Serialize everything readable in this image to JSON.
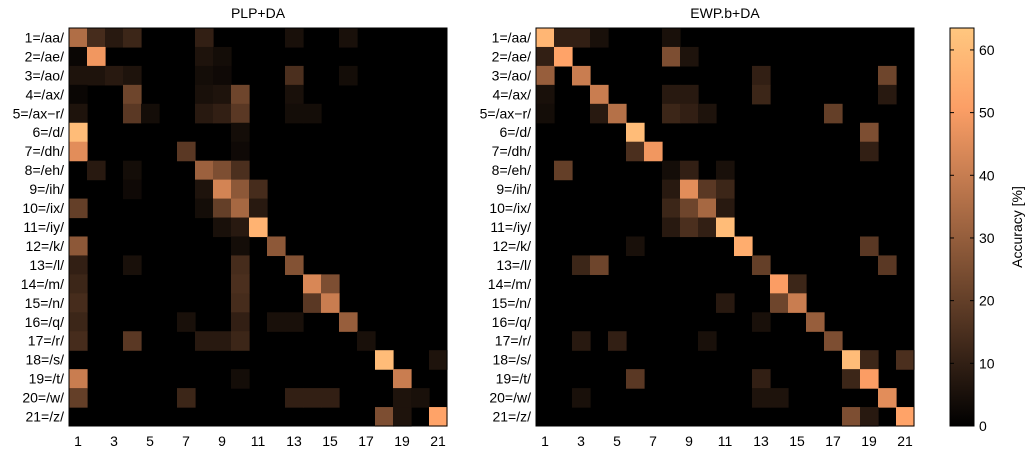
{
  "figure": {
    "colorbar": {
      "label": "Accuracy [%]",
      "ticks": [
        "0",
        "10",
        "20",
        "30",
        "40",
        "50",
        "60"
      ],
      "min": 0,
      "max": 63.5
    }
  },
  "chart_data": [
    {
      "type": "heatmap",
      "title": "PLP+DA",
      "xlabel": "",
      "ylabel": "",
      "row_labels": [
        "1=/aa/",
        "2=/ae/",
        "3=/ao/",
        "4=/ax/",
        "5=/ax−r/",
        "6=/d/",
        "7=/dh/",
        "8=/eh/",
        "9=/ih/",
        "10=/ix/",
        "11=/iy/",
        "12=/k/",
        "13=/l/",
        "14=/m/",
        "15=/n/",
        "16=/q/",
        "17=/r/",
        "18=/s/",
        "19=/t/",
        "20=/w/",
        "21=/z/"
      ],
      "col_tick_labels": [
        "1",
        "3",
        "5",
        "7",
        "9",
        "11",
        "13",
        "15",
        "17",
        "19",
        "21"
      ],
      "colormap": "copper",
      "clim": [
        0,
        63.5
      ],
      "diagonal": [
        35,
        48,
        8,
        22,
        4,
        0,
        2,
        31,
        42,
        33,
        57,
        28,
        26,
        43,
        40,
        30,
        5,
        60,
        40,
        5,
        52
      ],
      "off_diagonal": [
        [
          1,
          2,
          14
        ],
        [
          1,
          3,
          8
        ],
        [
          1,
          4,
          12
        ],
        [
          1,
          8,
          10
        ],
        [
          1,
          13,
          5
        ],
        [
          1,
          16,
          5
        ],
        [
          2,
          1,
          2
        ],
        [
          2,
          8,
          6
        ],
        [
          2,
          9,
          4
        ],
        [
          3,
          1,
          6
        ],
        [
          3,
          2,
          6
        ],
        [
          3,
          4,
          6
        ],
        [
          3,
          8,
          4
        ],
        [
          3,
          9,
          3
        ],
        [
          3,
          13,
          15
        ],
        [
          3,
          16,
          4
        ],
        [
          4,
          1,
          2
        ],
        [
          4,
          8,
          5
        ],
        [
          4,
          9,
          6
        ],
        [
          4,
          10,
          22
        ],
        [
          4,
          13,
          5
        ],
        [
          5,
          1,
          6
        ],
        [
          5,
          4,
          18
        ],
        [
          5,
          8,
          8
        ],
        [
          5,
          9,
          10
        ],
        [
          5,
          10,
          18
        ],
        [
          5,
          13,
          4
        ],
        [
          5,
          14,
          4
        ],
        [
          6,
          1,
          60
        ],
        [
          6,
          10,
          4
        ],
        [
          7,
          1,
          45
        ],
        [
          7,
          7,
          18
        ],
        [
          7,
          10,
          3
        ],
        [
          8,
          2,
          8
        ],
        [
          8,
          4,
          4
        ],
        [
          8,
          9,
          25
        ],
        [
          8,
          10,
          15
        ],
        [
          9,
          4,
          3
        ],
        [
          9,
          8,
          6
        ],
        [
          9,
          10,
          28
        ],
        [
          9,
          11,
          14
        ],
        [
          10,
          1,
          20
        ],
        [
          10,
          8,
          4
        ],
        [
          10,
          9,
          20
        ],
        [
          10,
          11,
          8
        ],
        [
          11,
          9,
          5
        ],
        [
          11,
          10,
          8
        ],
        [
          12,
          1,
          28
        ],
        [
          12,
          10,
          4
        ],
        [
          13,
          1,
          10
        ],
        [
          13,
          4,
          5
        ],
        [
          13,
          10,
          14
        ],
        [
          14,
          1,
          12
        ],
        [
          14,
          10,
          15
        ],
        [
          14,
          15,
          25
        ],
        [
          15,
          1,
          14
        ],
        [
          15,
          10,
          14
        ],
        [
          15,
          14,
          18
        ],
        [
          16,
          1,
          12
        ],
        [
          16,
          7,
          5
        ],
        [
          16,
          10,
          10
        ],
        [
          16,
          12,
          5
        ],
        [
          16,
          13,
          5
        ],
        [
          17,
          1,
          14
        ],
        [
          17,
          4,
          18
        ],
        [
          17,
          8,
          8
        ],
        [
          17,
          9,
          8
        ],
        [
          17,
          10,
          12
        ],
        [
          18,
          21,
          6
        ],
        [
          19,
          1,
          40
        ],
        [
          19,
          10,
          4
        ],
        [
          20,
          1,
          20
        ],
        [
          20,
          7,
          12
        ],
        [
          20,
          13,
          10
        ],
        [
          20,
          14,
          10
        ],
        [
          20,
          15,
          10
        ],
        [
          20,
          19,
          6
        ],
        [
          21,
          18,
          25
        ],
        [
          21,
          19,
          6
        ]
      ]
    },
    {
      "type": "heatmap",
      "title": "EWP.b+DA",
      "xlabel": "",
      "ylabel": "",
      "row_labels": [
        "1=/aa/",
        "2=/ae/",
        "3=/ao/",
        "4=/ax/",
        "5=/ax−r/",
        "6=/d/",
        "7=/dh/",
        "8=/eh/",
        "9=/ih/",
        "10=/ix/",
        "11=/iy/",
        "12=/k/",
        "13=/l/",
        "14=/m/",
        "15=/n/",
        "16=/q/",
        "17=/r/",
        "18=/s/",
        "19=/t/",
        "20=/w/",
        "21=/z/"
      ],
      "col_tick_labels": [
        "1",
        "3",
        "5",
        "7",
        "9",
        "11",
        "13",
        "15",
        "17",
        "19",
        "21"
      ],
      "colormap": "copper",
      "clim": [
        0,
        63.5
      ],
      "diagonal": [
        58,
        52,
        40,
        40,
        36,
        60,
        48,
        42,
        45,
        33,
        60,
        55,
        20,
        50,
        40,
        30,
        25,
        60,
        50,
        45,
        52
      ],
      "off_diagonal": [
        [
          1,
          2,
          10
        ],
        [
          1,
          3,
          10
        ],
        [
          1,
          4,
          5
        ],
        [
          1,
          8,
          5
        ],
        [
          2,
          1,
          10
        ],
        [
          2,
          8,
          25
        ],
        [
          2,
          9,
          6
        ],
        [
          3,
          1,
          30
        ],
        [
          3,
          13,
          10
        ],
        [
          3,
          20,
          22
        ],
        [
          4,
          1,
          5
        ],
        [
          4,
          8,
          8
        ],
        [
          4,
          9,
          8
        ],
        [
          4,
          13,
          12
        ],
        [
          4,
          20,
          8
        ],
        [
          5,
          1,
          4
        ],
        [
          5,
          4,
          8
        ],
        [
          5,
          8,
          12
        ],
        [
          5,
          9,
          10
        ],
        [
          5,
          10,
          6
        ],
        [
          5,
          17,
          20
        ],
        [
          6,
          19,
          25
        ],
        [
          7,
          6,
          15
        ],
        [
          7,
          19,
          10
        ],
        [
          8,
          2,
          20
        ],
        [
          8,
          8,
          4
        ],
        [
          8,
          9,
          10
        ],
        [
          8,
          11,
          5
        ],
        [
          9,
          8,
          8
        ],
        [
          9,
          10,
          18
        ],
        [
          9,
          11,
          12
        ],
        [
          10,
          8,
          12
        ],
        [
          10,
          9,
          22
        ],
        [
          10,
          11,
          8
        ],
        [
          11,
          8,
          8
        ],
        [
          11,
          9,
          15
        ],
        [
          11,
          10,
          10
        ],
        [
          12,
          6,
          5
        ],
        [
          12,
          19,
          18
        ],
        [
          13,
          3,
          12
        ],
        [
          13,
          4,
          22
        ],
        [
          13,
          20,
          18
        ],
        [
          14,
          15,
          12
        ],
        [
          15,
          11,
          8
        ],
        [
          15,
          14,
          22
        ],
        [
          16,
          13,
          5
        ],
        [
          17,
          3,
          8
        ],
        [
          17,
          5,
          10
        ],
        [
          17,
          10,
          5
        ],
        [
          18,
          19,
          12
        ],
        [
          18,
          21,
          15
        ],
        [
          19,
          6,
          18
        ],
        [
          19,
          13,
          10
        ],
        [
          19,
          18,
          12
        ],
        [
          20,
          3,
          5
        ],
        [
          20,
          13,
          6
        ],
        [
          20,
          14,
          6
        ],
        [
          21,
          18,
          25
        ],
        [
          21,
          19,
          8
        ]
      ]
    }
  ]
}
